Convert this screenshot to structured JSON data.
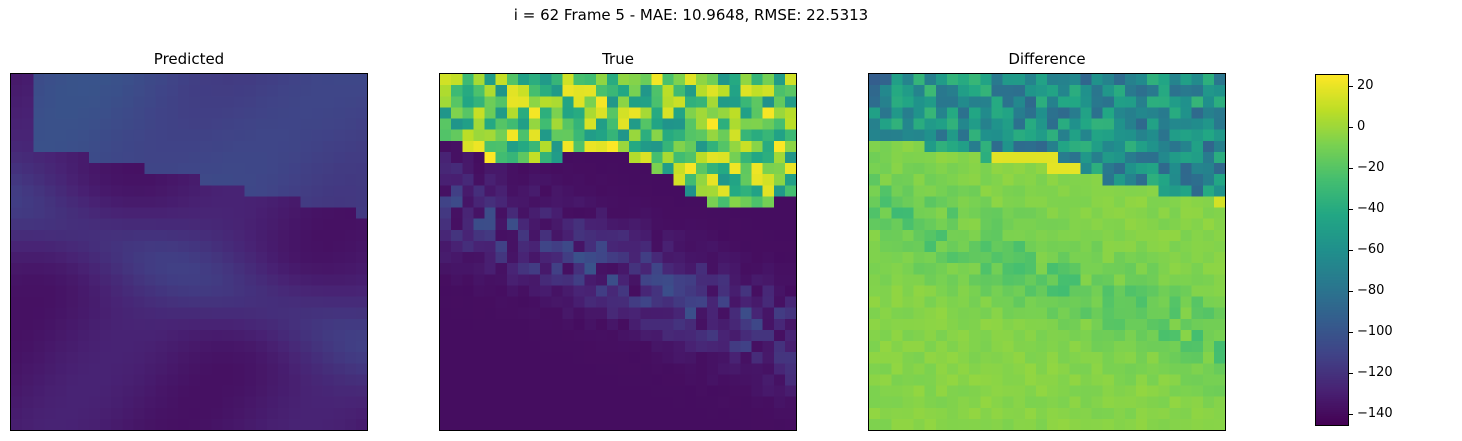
{
  "figure": {
    "title": "i = 62 Frame 5 - MAE: 10.9648, RMSE: 22.5313"
  },
  "chart_data": {
    "type": "heatmap",
    "colormap": "viridis",
    "grid_size": 32,
    "panels": [
      {
        "title": "Predicted",
        "kind": "predicted"
      },
      {
        "title": "True",
        "kind": "true"
      },
      {
        "title": "Difference",
        "kind": "difference"
      }
    ],
    "colorbar": {
      "range": [
        -146,
        26
      ],
      "ticks": [
        20,
        0,
        -20,
        -40,
        -60,
        -80,
        -100,
        -120,
        -140
      ],
      "tick_labels": [
        "20",
        "0",
        "−20",
        "−40",
        "−60",
        "−80",
        "−100",
        "−120",
        "−140"
      ]
    },
    "axes": {
      "ticks_visible": false,
      "grid": false
    }
  }
}
